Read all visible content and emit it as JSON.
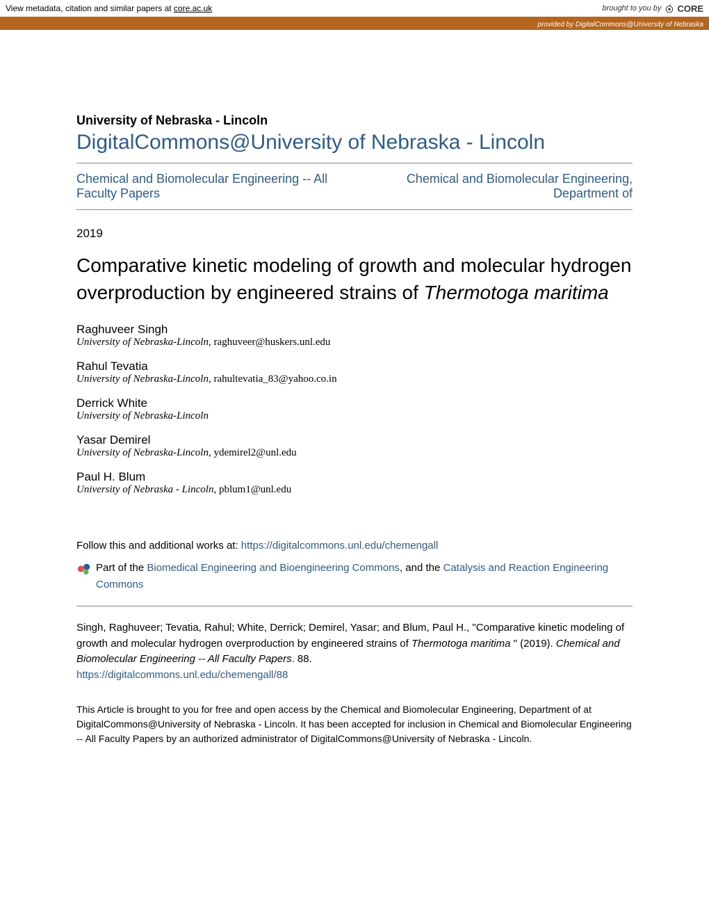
{
  "core_banner": {
    "prefix": "View metadata, citation and similar papers at ",
    "link_text": "core.ac.uk",
    "brought_by": "brought to you by ",
    "logo_text": "CORE"
  },
  "provided_bar": {
    "prefix": "provided by ",
    "provider": "DigitalCommons@University of Nebraska"
  },
  "institution": "University of Nebraska - Lincoln",
  "repo_title": "DigitalCommons@University of Nebraska - Lincoln",
  "nav": {
    "left": "Chemical and Biomolecular Engineering -- All Faculty Papers",
    "right": "Chemical and Biomolecular Engineering, Department of"
  },
  "year": "2019",
  "title": {
    "main": "Comparative kinetic modeling of growth and molecular hydrogen overproduction by engineered strains of ",
    "italic": "Thermotoga maritima"
  },
  "authors": [
    {
      "name": "Raghuveer Singh",
      "affil_italic": "University of Nebraska-Lincoln",
      "email": ", raghuveer@huskers.unl.edu"
    },
    {
      "name": "Rahul Tevatia",
      "affil_italic": "University of Nebraska-Lincoln",
      "email": ", rahultevatia_83@yahoo.co.in"
    },
    {
      "name": "Derrick White",
      "affil_italic": "University of Nebraska-Lincoln",
      "email": ""
    },
    {
      "name": "Yasar Demirel",
      "affil_italic": "University of Nebraska-Lincoln",
      "email": ", ydemirel2@unl.edu"
    },
    {
      "name": "Paul H. Blum",
      "affil_italic": "University of Nebraska - Lincoln",
      "email": ", pblum1@unl.edu"
    }
  ],
  "follow": {
    "text": "Follow this and additional works at: ",
    "link": "https://digitalcommons.unl.edu/chemengall"
  },
  "commons": {
    "prefix": "Part of the ",
    "link1": "Biomedical Engineering and Bioengineering Commons",
    "mid": ", and the ",
    "link2": "Catalysis and Reaction Engineering Commons"
  },
  "citation": {
    "authors_text": "Singh, Raghuveer; Tevatia, Rahul; White, Derrick; Demirel, Yasar; and Blum, Paul H., \"Comparative kinetic modeling of growth and molecular hydrogen overproduction by engineered strains of ",
    "italic1": "Thermotoga maritima",
    "mid": " \" (2019). ",
    "italic2": "Chemical and Biomolecular Engineering -- All Faculty Papers",
    "suffix": ". 88.",
    "url": "https://digitalcommons.unl.edu/chemengall/88"
  },
  "access_statement": "This Article is brought to you for free and open access by the Chemical and Biomolecular Engineering, Department of at DigitalCommons@University of Nebraska - Lincoln. It has been accepted for inclusion in Chemical and Biomolecular Engineering -- All Faculty Papers by an authorized administrator of DigitalCommons@University of Nebraska - Lincoln.",
  "colors": {
    "link": "#2e5c8a",
    "banner_brown": "#b5651d",
    "divider": "#888888"
  }
}
